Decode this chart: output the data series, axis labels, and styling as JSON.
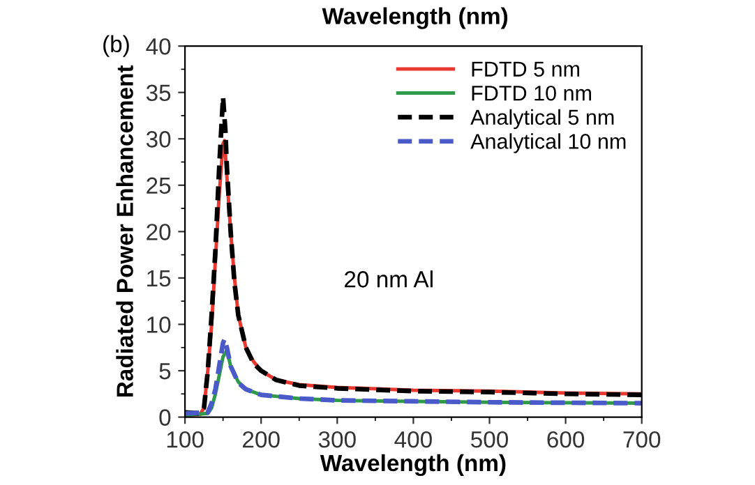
{
  "chart_data": {
    "type": "line",
    "xlabel": "Wavelength (nm)",
    "ylabel": "Radiated Power Enhancement",
    "xlim": [
      100,
      700
    ],
    "ylim": [
      0,
      40
    ],
    "xticks": [
      100,
      200,
      300,
      400,
      500,
      600,
      700
    ],
    "yticks": [
      0,
      5,
      10,
      15,
      20,
      25,
      30,
      35,
      40
    ],
    "grid": false,
    "legend": "top right",
    "marker": "none",
    "annotations": [
      "20 nm Al",
      "(b)",
      "Wavelength (nm)"
    ],
    "series": [
      {
        "name": "FDTD 5 nm",
        "color": "#e8382f",
        "line_style": "solid",
        "x": [
          100,
          120,
          125,
          130,
          135,
          140,
          145,
          150,
          152,
          155,
          160,
          165,
          170,
          180,
          190,
          200,
          220,
          250,
          300,
          400,
          500,
          600,
          700
        ],
        "values": [
          0.2,
          0.3,
          1,
          5,
          10,
          17,
          24,
          29.5,
          29.8,
          26,
          20,
          15,
          11,
          7.5,
          6,
          5,
          4,
          3.5,
          3.2,
          2.9,
          2.8,
          2.6,
          2.5
        ]
      },
      {
        "name": "FDTD 10 nm",
        "color": "#2e9a4a",
        "line_style": "solid",
        "x": [
          100,
          130,
          135,
          140,
          145,
          150,
          155,
          160,
          170,
          180,
          200,
          250,
          300,
          400,
          500,
          700
        ],
        "values": [
          0.2,
          0.4,
          1,
          2.5,
          4.5,
          6.5,
          7.2,
          5.5,
          3.8,
          3,
          2.4,
          2,
          1.8,
          1.7,
          1.6,
          1.5
        ]
      },
      {
        "name": "Analytical 5 nm",
        "color": "#000000",
        "line_style": "dashed",
        "x": [
          100,
          120,
          125,
          130,
          135,
          140,
          145,
          150,
          153,
          155,
          160,
          165,
          170,
          180,
          190,
          200,
          220,
          250,
          300,
          400,
          500,
          600,
          700
        ],
        "values": [
          0.5,
          0.4,
          1,
          5,
          11,
          18,
          27,
          34.5,
          31,
          27,
          20,
          14.5,
          11,
          7.5,
          5.8,
          5,
          4,
          3.4,
          3.1,
          2.8,
          2.7,
          2.5,
          2.4
        ]
      },
      {
        "name": "Analytical 10 nm",
        "color": "#4a5ac8",
        "line_style": "dashed",
        "x": [
          100,
          130,
          135,
          140,
          145,
          150,
          152,
          155,
          160,
          170,
          180,
          200,
          250,
          300,
          400,
          500,
          700
        ],
        "values": [
          0.4,
          0.5,
          1.5,
          3,
          5.5,
          8,
          8.4,
          7.5,
          5.5,
          3.7,
          3,
          2.4,
          2,
          1.8,
          1.7,
          1.6,
          1.5
        ]
      }
    ]
  }
}
